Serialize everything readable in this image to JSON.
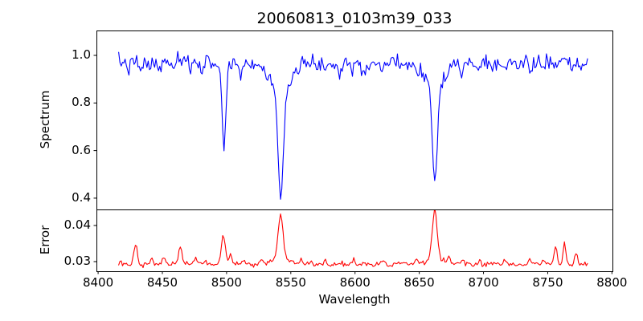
{
  "figure": {
    "title": "20060813_0103m39_033",
    "xlabel": "Wavelength",
    "background": "#ffffff",
    "axis_color": "#000000",
    "xlim": [
      8398.7,
      8800.4
    ],
    "xticks": [
      8400,
      8450,
      8500,
      8550,
      8600,
      8650,
      8700,
      8750,
      8800
    ],
    "xtick_labels": [
      "8400",
      "8450",
      "8500",
      "8550",
      "8600",
      "8650",
      "8700",
      "8750",
      "8800"
    ]
  },
  "chart_data": [
    {
      "type": "line",
      "name": "spectrum",
      "ylabel": "Spectrum",
      "color": "#0000ff",
      "ylim": [
        0.3525,
        1.1046
      ],
      "yticks": [
        0.4,
        0.6,
        0.8,
        1.0
      ],
      "ytick_labels": [
        "0.4",
        "0.6",
        "0.8",
        "1.0"
      ],
      "x_start": 8416,
      "x_end": 8781,
      "step": 1.0,
      "continuum": 0.97,
      "noise_sigma": 0.016,
      "seed": 7,
      "absorption_lines": [
        {
          "center": 8498.0,
          "depth": 0.345,
          "sigma": 1.4
        },
        {
          "center": 8498.0,
          "depth": 0.02,
          "sigma": 3.5
        },
        {
          "center": 8542.1,
          "depth": 0.455,
          "sigma": 2.0
        },
        {
          "center": 8542.1,
          "depth": 0.12,
          "sigma": 7.0
        },
        {
          "center": 8662.1,
          "depth": 0.4,
          "sigma": 1.9
        },
        {
          "center": 8662.1,
          "depth": 0.1,
          "sigma": 6.5
        },
        {
          "center": 8424,
          "depth": 0.03,
          "sigma": 0.8
        },
        {
          "center": 8433,
          "depth": 0.048,
          "sigma": 1.0
        },
        {
          "center": 8440,
          "depth": 0.025,
          "sigma": 0.8
        },
        {
          "center": 8447,
          "depth": 0.042,
          "sigma": 1.1
        },
        {
          "center": 8458,
          "depth": 0.028,
          "sigma": 0.8
        },
        {
          "center": 8472,
          "depth": 0.025,
          "sigma": 0.8
        },
        {
          "center": 8481,
          "depth": 0.03,
          "sigma": 0.9
        },
        {
          "center": 8511,
          "depth": 0.065,
          "sigma": 1.0
        },
        {
          "center": 8519,
          "depth": 0.032,
          "sigma": 0.8
        },
        {
          "center": 8531,
          "depth": 0.028,
          "sigma": 1.2
        },
        {
          "center": 8556,
          "depth": 0.03,
          "sigma": 0.9
        },
        {
          "center": 8565,
          "depth": 0.025,
          "sigma": 0.8
        },
        {
          "center": 8577,
          "depth": 0.038,
          "sigma": 1.0
        },
        {
          "center": 8588,
          "depth": 0.055,
          "sigma": 1.0
        },
        {
          "center": 8598,
          "depth": 0.032,
          "sigma": 0.9
        },
        {
          "center": 8607,
          "depth": 0.05,
          "sigma": 1.0
        },
        {
          "center": 8621,
          "depth": 0.038,
          "sigma": 1.0
        },
        {
          "center": 8634,
          "depth": 0.03,
          "sigma": 0.8
        },
        {
          "center": 8648,
          "depth": 0.04,
          "sigma": 1.0
        },
        {
          "center": 8672,
          "depth": 0.03,
          "sigma": 0.9
        },
        {
          "center": 8683,
          "depth": 0.062,
          "sigma": 1.1
        },
        {
          "center": 8696,
          "depth": 0.05,
          "sigma": 1.0
        },
        {
          "center": 8706,
          "depth": 0.03,
          "sigma": 0.8
        },
        {
          "center": 8717,
          "depth": 0.042,
          "sigma": 1.0
        },
        {
          "center": 8727,
          "depth": 0.03,
          "sigma": 0.8
        },
        {
          "center": 8736,
          "depth": 0.035,
          "sigma": 0.9
        },
        {
          "center": 8746,
          "depth": 0.028,
          "sigma": 0.8
        },
        {
          "center": 8757,
          "depth": 0.03,
          "sigma": 0.9
        },
        {
          "center": 8768,
          "depth": 0.045,
          "sigma": 1.0
        },
        {
          "center": 8776,
          "depth": 0.03,
          "sigma": 0.8
        }
      ],
      "key_minima": [
        {
          "x": 8498,
          "y": 0.61
        },
        {
          "x": 8542,
          "y": 0.39
        },
        {
          "x": 8662,
          "y": 0.46
        }
      ]
    },
    {
      "type": "line",
      "name": "error",
      "ylabel": "Error",
      "color": "#ff0000",
      "ylim": [
        0.02733,
        0.04444
      ],
      "yticks": [
        0.03,
        0.04
      ],
      "ytick_labels": [
        "0.03",
        "0.04"
      ],
      "x_start": 8416,
      "x_end": 8781,
      "step": 1.0,
      "baseline": 0.0293,
      "noise_sigma": 0.00035,
      "seed": 13,
      "peaks": [
        {
          "center": 8429,
          "amp": 0.0056,
          "sigma": 1.2
        },
        {
          "center": 8442,
          "amp": 0.0012,
          "sigma": 1.0
        },
        {
          "center": 8451,
          "amp": 0.0018,
          "sigma": 1.2
        },
        {
          "center": 8464,
          "amp": 0.005,
          "sigma": 1.2
        },
        {
          "center": 8476,
          "amp": 0.0012,
          "sigma": 1.0
        },
        {
          "center": 8484,
          "amp": 0.001,
          "sigma": 0.9
        },
        {
          "center": 8497.5,
          "amp": 0.008,
          "sigma": 1.5
        },
        {
          "center": 8503,
          "amp": 0.0028,
          "sigma": 1.0
        },
        {
          "center": 8513,
          "amp": 0.0014,
          "sigma": 1.0
        },
        {
          "center": 8527,
          "amp": 0.0012,
          "sigma": 1.2
        },
        {
          "center": 8542.1,
          "amp": 0.0125,
          "sigma": 1.9
        },
        {
          "center": 8542.1,
          "amp": 0.0013,
          "sigma": 6.0
        },
        {
          "center": 8558,
          "amp": 0.0012,
          "sigma": 1.0
        },
        {
          "center": 8577,
          "amp": 0.001,
          "sigma": 1.0
        },
        {
          "center": 8599,
          "amp": 0.001,
          "sigma": 1.0
        },
        {
          "center": 8621,
          "amp": 0.0012,
          "sigma": 1.0
        },
        {
          "center": 8648,
          "amp": 0.0012,
          "sigma": 1.0
        },
        {
          "center": 8662.1,
          "amp": 0.013,
          "sigma": 1.9
        },
        {
          "center": 8662.1,
          "amp": 0.0015,
          "sigma": 6.0
        },
        {
          "center": 8673,
          "amp": 0.0015,
          "sigma": 1.2
        },
        {
          "center": 8684,
          "amp": 0.0012,
          "sigma": 1.0
        },
        {
          "center": 8697,
          "amp": 0.0012,
          "sigma": 1.0
        },
        {
          "center": 8717,
          "amp": 0.0012,
          "sigma": 1.0
        },
        {
          "center": 8736,
          "amp": 0.0014,
          "sigma": 1.0
        },
        {
          "center": 8747,
          "amp": 0.0012,
          "sigma": 1.0
        },
        {
          "center": 8756,
          "amp": 0.005,
          "sigma": 1.1
        },
        {
          "center": 8763,
          "amp": 0.0056,
          "sigma": 1.0
        },
        {
          "center": 8772,
          "amp": 0.004,
          "sigma": 1.0
        }
      ],
      "key_maxima": [
        {
          "x": 8429,
          "y": 0.0349
        },
        {
          "x": 8464,
          "y": 0.0343
        },
        {
          "x": 8498,
          "y": 0.0373
        },
        {
          "x": 8542,
          "y": 0.0431
        },
        {
          "x": 8662,
          "y": 0.0438
        },
        {
          "x": 8763,
          "y": 0.0349
        }
      ]
    }
  ]
}
